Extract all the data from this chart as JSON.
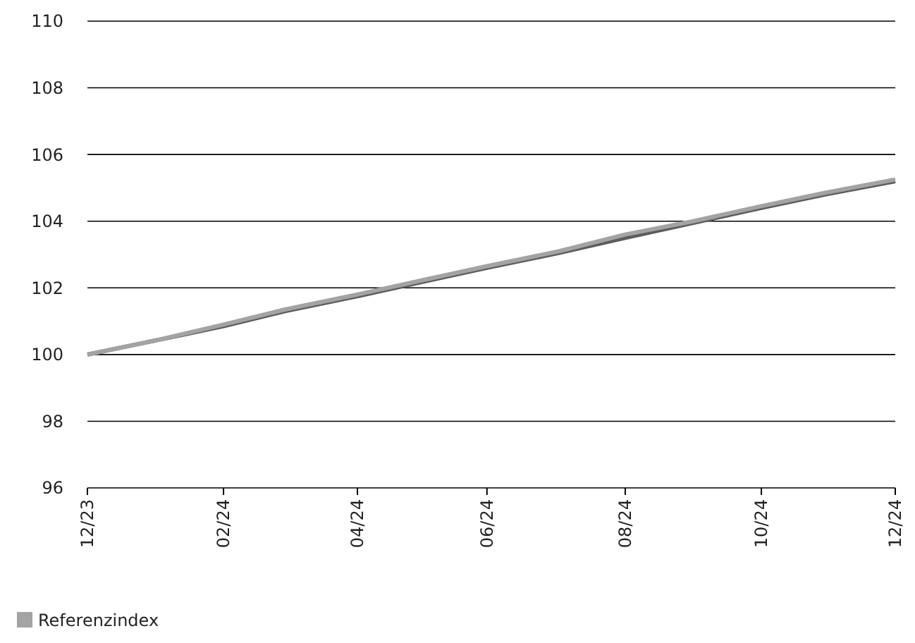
{
  "chart_data": {
    "type": "line",
    "x": [
      "2023-12-29",
      "2024-01-31",
      "2024-02-29",
      "2024-03-28",
      "2024-04-30",
      "2024-05-31",
      "2024-06-28",
      "2024-07-31",
      "2024-08-30",
      "2024-09-30",
      "2024-10-31",
      "2024-11-29",
      "2024-12-31"
    ],
    "series": [
      {
        "color": "#5c5c5c",
        "values": [
          100,
          100.45,
          100.85,
          101.3,
          101.75,
          102.2,
          102.6,
          103.05,
          103.5,
          103.95,
          104.4,
          104.8,
          105.2
        ]
      },
      {
        "name": "Referenzindex",
        "color": "#a3a3a3",
        "values": [
          100,
          100.45,
          100.9,
          101.35,
          101.8,
          102.25,
          102.65,
          103.1,
          103.6,
          104,
          104.45,
          104.85,
          105.25
        ]
      }
    ],
    "xlim": [
      "2023-12-29",
      "2024-12-31"
    ],
    "xticks": [
      {
        "value": "2023-12-29",
        "label": "12/23"
      },
      {
        "value": "2024-02-29",
        "label": "02/24"
      },
      {
        "value": "2024-04-30",
        "label": "04/24"
      },
      {
        "value": "2024-06-28",
        "label": "06/24"
      },
      {
        "value": "2024-08-30",
        "label": "08/24"
      },
      {
        "value": "2024-10-31",
        "label": "10/24"
      },
      {
        "value": "2024-12-31",
        "label": "12/24"
      }
    ],
    "ylim": [
      96,
      110
    ],
    "yticks": [
      96,
      98,
      100,
      102,
      104,
      106,
      108,
      110
    ],
    "grid": "y",
    "legend": "bottom",
    "line_style": "solid",
    "marker": "none"
  }
}
